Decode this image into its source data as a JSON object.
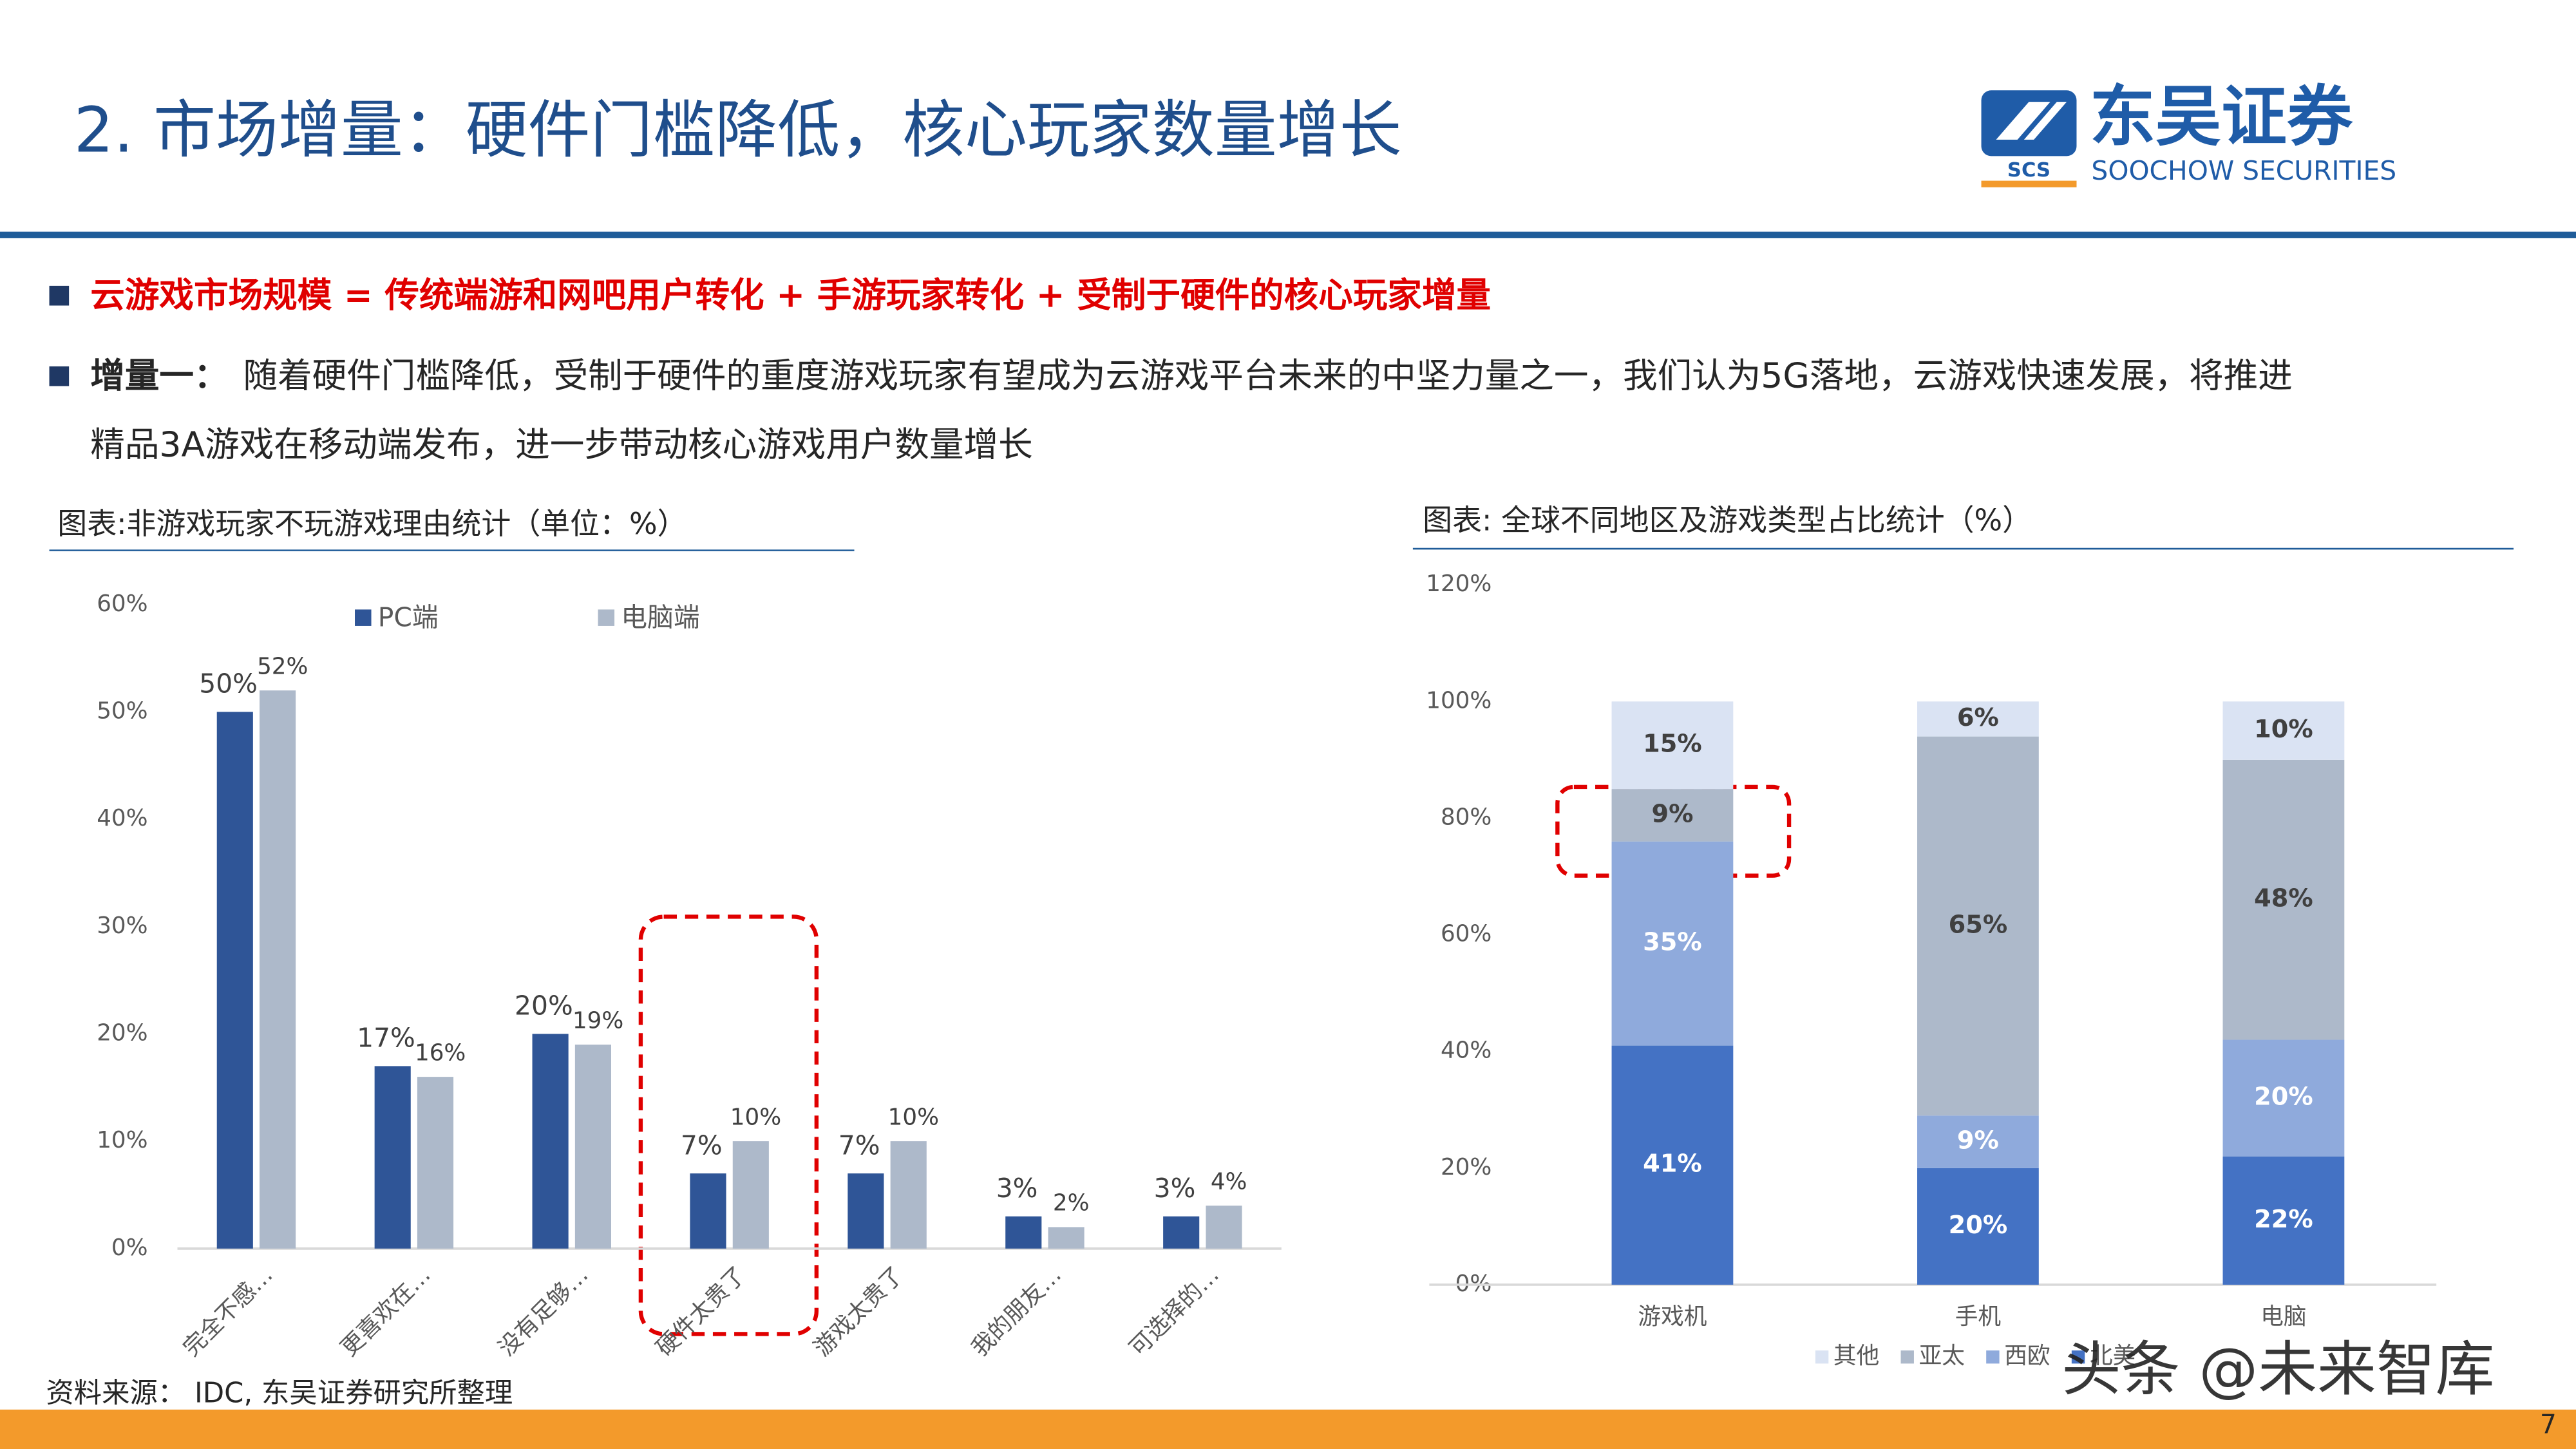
{
  "header": {
    "title": "2. 市场增量：硬件门槛降低，核心玩家数量增长",
    "logo_name": "东吴证券",
    "logo_subtitle": "SOOCHOW SECURITIES",
    "logo_mark": "SCS"
  },
  "bullets": [
    {
      "text": "云游戏市场规模 = 传统端游和网吧用户转化 + 手游玩家转化 + 受制于硬件的核心玩家增量"
    },
    {
      "label": "增量一：",
      "lines": [
        "随着硬件门槛降低，受制于硬件的重度游戏玩家有望成为云游戏平台未来的中坚力量之一，我们认为5G落地，云游戏快速发展，将推进",
        "精品3A游戏在移动端发布，进一步带动核心游戏用户数量增长"
      ]
    }
  ],
  "chart_data": [
    {
      "type": "bar",
      "title": "图表:非游戏玩家不玩游戏理由统计（单位：%）",
      "categories": [
        "完全不感…",
        "更喜欢在…",
        "没有足够…",
        "硬件太贵了",
        "游戏太贵了",
        "我的朋友…",
        "可选择的…"
      ],
      "series": [
        {
          "name": "PC端",
          "color": "#2f5597",
          "values": [
            50,
            17,
            20,
            7,
            7,
            3,
            3
          ],
          "value_labels": [
            "50%",
            "17%",
            "20%",
            "7%",
            "7%",
            "3%",
            "3%"
          ]
        },
        {
          "name": "电脑端",
          "color": "#adb9ca",
          "values": [
            52,
            16,
            19,
            10,
            10,
            2,
            4
          ],
          "value_labels": [
            "52%",
            "16%",
            "19%",
            "10%",
            "10%",
            "2%",
            "4%"
          ]
        }
      ],
      "ylim": [
        0,
        60
      ],
      "yticks": [
        {
          "value": 0,
          "label": "0%"
        },
        {
          "value": 10,
          "label": "10%"
        },
        {
          "value": 20,
          "label": "20%"
        },
        {
          "value": 30,
          "label": "30%"
        },
        {
          "value": 40,
          "label": "40%"
        },
        {
          "value": 50,
          "label": "50%"
        },
        {
          "value": 60,
          "label": "60%"
        }
      ],
      "grid": false,
      "legend": "top"
    },
    {
      "type": "stacked_bar",
      "title": "图表: 全球不同地区及游戏类型占比统计（%）",
      "categories": [
        "游戏机",
        "手机",
        "电脑"
      ],
      "series": [
        {
          "name": "北美",
          "color": "#4472c4",
          "values": [
            41,
            20,
            22
          ],
          "value_labels": [
            "41%",
            "20%",
            "22%"
          ]
        },
        {
          "name": "西欧",
          "color": "#8faadc",
          "values": [
            35,
            9,
            20
          ],
          "value_labels": [
            "35%",
            "9%",
            "20%"
          ]
        },
        {
          "name": "亚太",
          "color": "#adb9ca",
          "values": [
            9,
            65,
            48
          ],
          "value_labels": [
            "9%",
            "65%",
            "48%"
          ]
        },
        {
          "name": "其他",
          "color": "#dae3f3",
          "values": [
            15,
            6,
            10
          ],
          "value_labels": [
            "15%",
            "6%",
            "10%"
          ]
        }
      ],
      "ylim": [
        0,
        120
      ],
      "yticks": [
        {
          "value": 0,
          "label": "0%"
        },
        {
          "value": 20,
          "label": "20%"
        },
        {
          "value": 40,
          "label": "40%"
        },
        {
          "value": 60,
          "label": "60%"
        },
        {
          "value": 80,
          "label": "80%"
        },
        {
          "value": 100,
          "label": "100%"
        },
        {
          "value": 120,
          "label": "120%"
        }
      ],
      "grid": false,
      "legend": "bottom"
    }
  ],
  "source": "资料来源： IDC, 东吴证券研究所整理",
  "watermark": "头条 @未来智库",
  "page_number": "7"
}
